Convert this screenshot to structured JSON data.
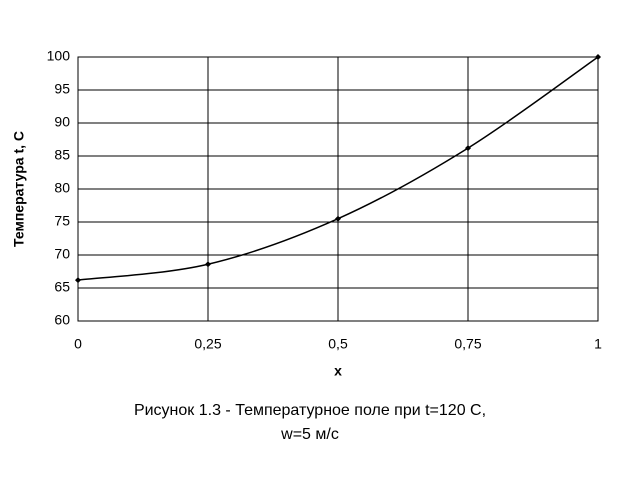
{
  "chart_data": {
    "type": "line",
    "x": [
      0,
      0.25,
      0.5,
      0.75,
      1
    ],
    "series": [
      {
        "color": "#000000",
        "values": [
          66.2,
          68.6,
          75.5,
          86.2,
          100
        ]
      }
    ],
    "xlim": [
      0,
      1
    ],
    "xticks": [
      0,
      {
        "value": 0.25,
        "label": "0,25"
      },
      {
        "value": 0.5,
        "label": "0,5"
      },
      {
        "value": 0.75,
        "label": "0,75"
      },
      1
    ],
    "ylim": [
      60,
      100
    ],
    "yticks": [
      60,
      65,
      70,
      75,
      80,
      85,
      90,
      95,
      100
    ],
    "xlabel": "x",
    "ylabel": "Температура t, С",
    "caption": [
      "Рисунок 1.3 - Температурное поле при t=120 С,",
      "w=5 м/с"
    ],
    "grid": true
  }
}
